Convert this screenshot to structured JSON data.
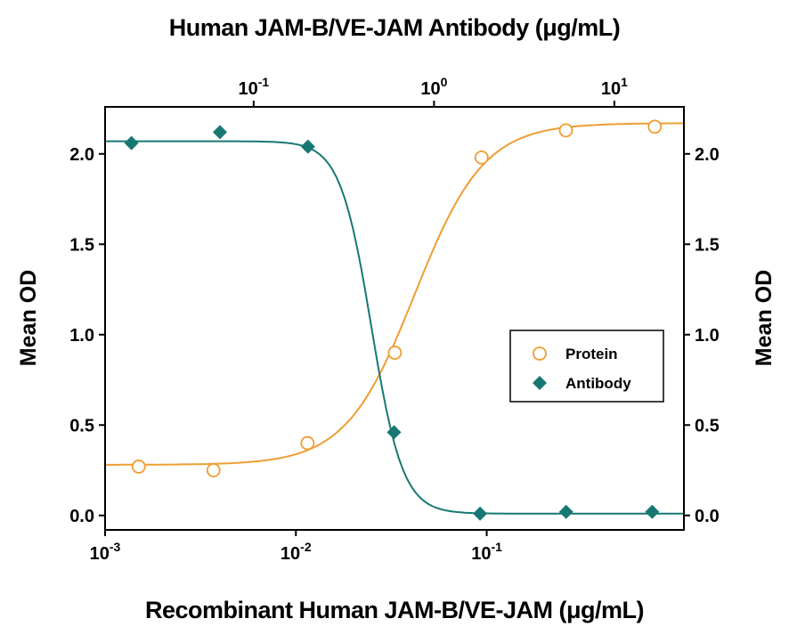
{
  "chart_data": {
    "type": "scatter",
    "title_top": "Human JAM-B/VE-JAM Antibody (μg/mL)",
    "xlabel_bottom": "Recombinant Human JAM-B/VE-JAM (μg/mL)",
    "ylabel_left": "Mean OD",
    "ylabel_right": "Mean OD",
    "grid": false,
    "ylim": [
      -0.08,
      2.26
    ],
    "y_ticks": [
      {
        "v": 0.0,
        "label": "0.0"
      },
      {
        "v": 0.5,
        "label": "0.5"
      },
      {
        "v": 1.0,
        "label": "1.0"
      },
      {
        "v": 1.5,
        "label": "1.5"
      },
      {
        "v": 2.0,
        "label": "2.0"
      }
    ],
    "bottom_axis": {
      "scale": "log",
      "range": [
        0.001,
        1.08
      ],
      "ticks": [
        {
          "v": 0.001,
          "exp": "-3"
        },
        {
          "v": 0.01,
          "exp": "-2"
        },
        {
          "v": 0.1,
          "exp": "-1"
        }
      ]
    },
    "top_axis": {
      "scale": "log",
      "range": [
        0.015,
        24.3
      ],
      "ticks": [
        {
          "v": 0.1,
          "exp": "-1"
        },
        {
          "v": 1,
          "exp": "0"
        },
        {
          "v": 10,
          "exp": "1"
        }
      ]
    },
    "series": [
      {
        "name": "Protein",
        "axis": "bottom",
        "marker": "open-circle",
        "color": "#EF9D33",
        "points": [
          [
            0.0015,
            0.27
          ],
          [
            0.0037,
            0.25
          ],
          [
            0.0115,
            0.4
          ],
          [
            0.033,
            0.9
          ],
          [
            0.094,
            1.98
          ],
          [
            0.26,
            2.13
          ],
          [
            0.76,
            2.15
          ]
        ],
        "fit": {
          "trend": "up",
          "base": 0.28,
          "plateau": 2.17,
          "mid": 0.042,
          "hill": 2.4
        }
      },
      {
        "name": "Antibody",
        "axis": "top",
        "marker": "filled-diamond",
        "color": "#177873",
        "points": [
          [
            0.021,
            2.06
          ],
          [
            0.065,
            2.12
          ],
          [
            0.2,
            2.04
          ],
          [
            0.6,
            0.46
          ],
          [
            1.8,
            0.01
          ],
          [
            5.4,
            0.02
          ],
          [
            16.2,
            0.02
          ]
        ],
        "fit": {
          "trend": "down",
          "base": 0.01,
          "plateau": 2.07,
          "mid": 0.45,
          "hill": 5.0
        }
      }
    ],
    "legend": {
      "position": "right-middle",
      "entries": [
        {
          "label": "Protein",
          "marker": "open-circle",
          "color": "#EF9D33"
        },
        {
          "label": "Antibody",
          "marker": "filled-diamond",
          "color": "#177873"
        }
      ]
    }
  }
}
